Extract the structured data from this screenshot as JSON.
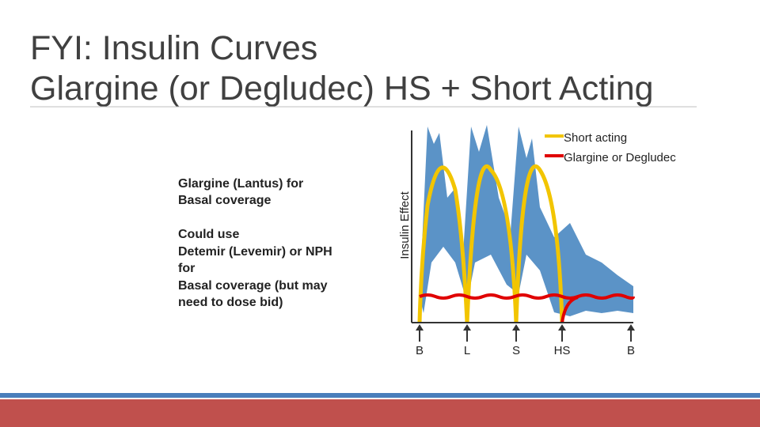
{
  "header": {
    "title": [
      "FYI: Insulin Curves",
      "Glargine (or Degludec) HS + Short Acting"
    ]
  },
  "notes": [
    [
      "Glargine (Lantus) for",
      "Basal coverage"
    ],
    [
      "Could use",
      "Detemir (Levemir) or NPH",
      "for",
      "Basal coverage (but may",
      "need to dose bid)"
    ]
  ],
  "diagram": {
    "y_axis_label": "Insulin Effect",
    "legend": [
      "Short acting",
      "Glargine or Degludec"
    ],
    "meal_markers": [
      "B",
      "L",
      "S",
      "HS",
      "B"
    ]
  }
}
